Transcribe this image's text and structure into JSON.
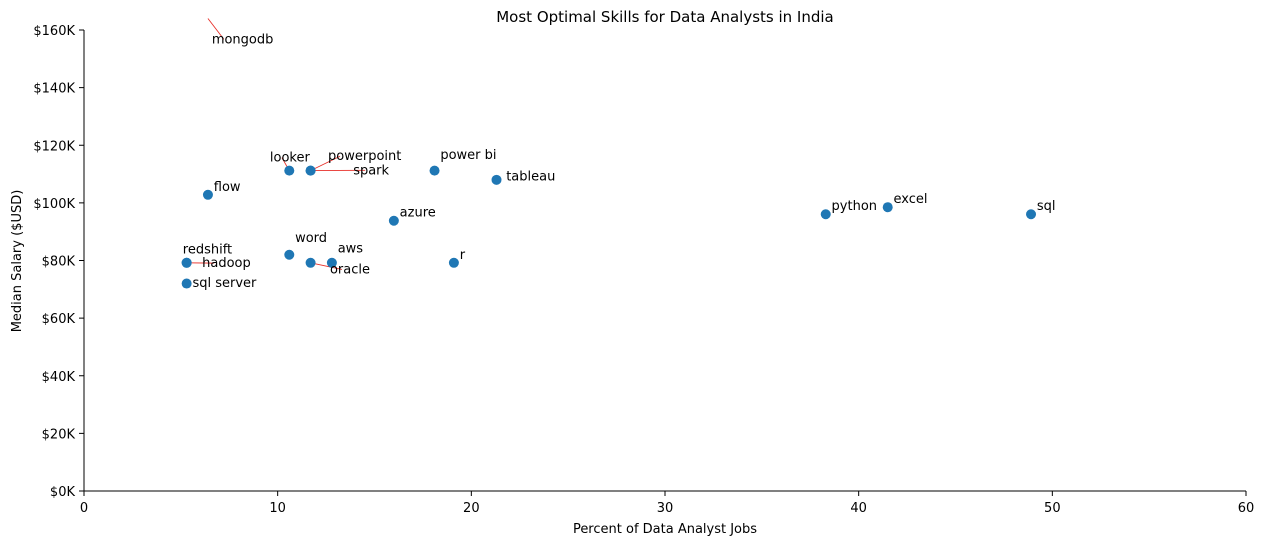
{
  "chart_data": {
    "type": "scatter",
    "title": "Most Optimal Skills for Data Analysts in India",
    "xlabel": "Percent of Data Analyst Jobs",
    "ylabel": "Median Salary ($USD)",
    "xlim": [
      0,
      60
    ],
    "ylim": [
      0,
      160000
    ],
    "x_ticks": [
      0,
      10,
      20,
      30,
      40,
      50,
      60
    ],
    "x_tick_labels": [
      "0",
      "10",
      "20",
      "30",
      "40",
      "50",
      "60"
    ],
    "y_ticks": [
      0,
      20000,
      40000,
      60000,
      80000,
      100000,
      120000,
      140000,
      160000
    ],
    "y_tick_labels": [
      "$0K",
      "$20K",
      "$40K",
      "$60K",
      "$80K",
      "$100K",
      "$120K",
      "$140K",
      "$160K"
    ],
    "grid": false,
    "marker_color": "#1f77b4",
    "leader_color": "#e8302a",
    "points": [
      {
        "skill": "sql",
        "x": 48.9,
        "y": 96050,
        "label_x": 49.2,
        "label_y": 97500
      },
      {
        "skill": "excel",
        "x": 41.5,
        "y": 98500,
        "label_x": 41.8,
        "label_y": 100000
      },
      {
        "skill": "python",
        "x": 38.3,
        "y": 96050,
        "label_x": 38.6,
        "label_y": 97500
      },
      {
        "skill": "tableau",
        "x": 21.3,
        "y": 108000,
        "label_x": 21.8,
        "label_y": 107700
      },
      {
        "skill": "power bi",
        "x": 18.1,
        "y": 111200,
        "label_x": 18.4,
        "label_y": 115300
      },
      {
        "skill": "r",
        "x": 19.1,
        "y": 79200,
        "label_x": 19.4,
        "label_y": 80600
      },
      {
        "skill": "azure",
        "x": 16.0,
        "y": 93800,
        "label_x": 16.3,
        "label_y": 95300
      },
      {
        "skill": "aws",
        "x": 12.8,
        "y": 79200,
        "label_x": 13.1,
        "label_y": 82800
      },
      {
        "skill": "oracle",
        "x": 11.7,
        "y": 79200,
        "label_x": 12.7,
        "label_y": 75500
      },
      {
        "skill": "spark",
        "x": 11.7,
        "y": 111200,
        "label_x": 13.9,
        "label_y": 109900
      },
      {
        "skill": "powerpoint",
        "x": 11.7,
        "y": 111200,
        "label_x": 12.6,
        "label_y": 114800
      },
      {
        "skill": "looker",
        "x": 10.6,
        "y": 111200,
        "label_x": 9.6,
        "label_y": 114300
      },
      {
        "skill": "word",
        "x": 10.6,
        "y": 82000,
        "label_x": 10.9,
        "label_y": 86500
      },
      {
        "skill": "flow",
        "x": 6.4,
        "y": 102800,
        "label_x": 6.7,
        "label_y": 104100
      },
      {
        "skill": "redshift",
        "x": 5.3,
        "y": 79200,
        "label_x": 5.1,
        "label_y": 82400
      },
      {
        "skill": "hadoop",
        "x": 5.3,
        "y": 79200,
        "label_x": 6.1,
        "label_y": 77700
      },
      {
        "skill": "sql server",
        "x": 5.3,
        "y": 72000,
        "label_x": 5.6,
        "label_y": 70800
      },
      {
        "skill": "mongodb",
        "x": 6.4,
        "y": 164000,
        "label_x": 6.6,
        "label_y": 155400
      }
    ]
  }
}
